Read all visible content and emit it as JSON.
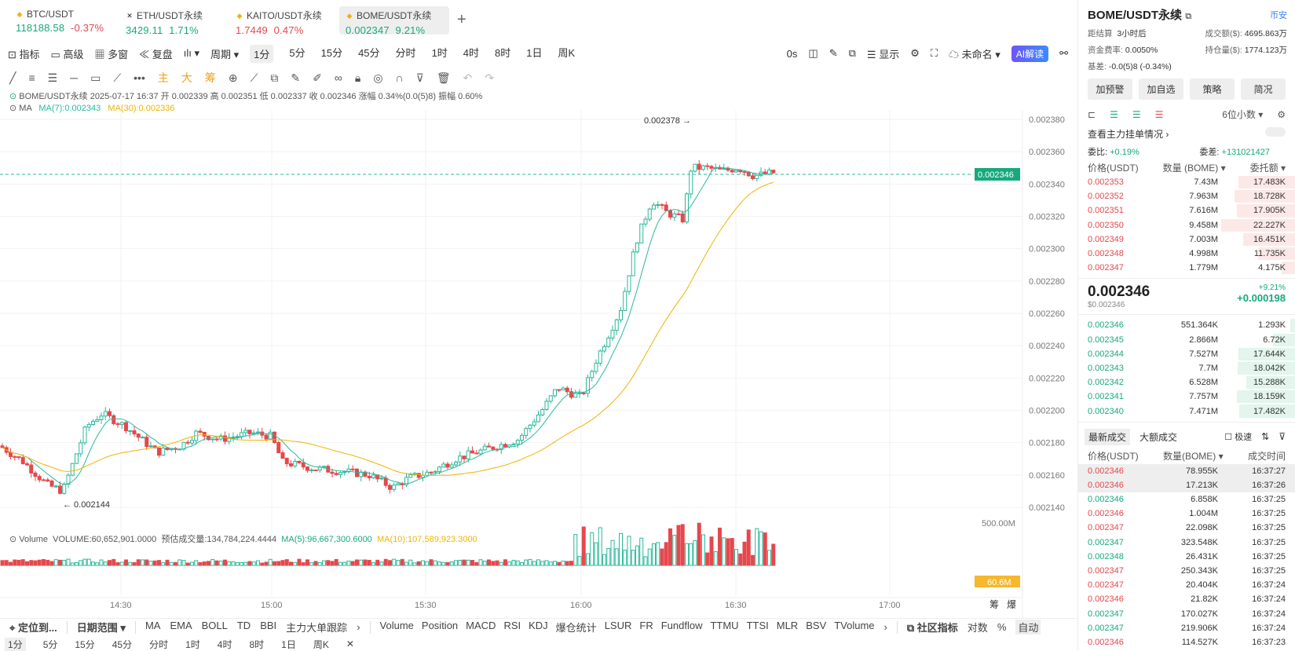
{
  "tabs": [
    {
      "name": "BTC/USDT",
      "price": "118188.58",
      "change": "-0.37%",
      "pc": "g",
      "cc": "r",
      "icon": "bitcoin-icon"
    },
    {
      "name": "ETH/USDT永续",
      "price": "3429.11",
      "change": "1.71%",
      "pc": "g",
      "cc": "g",
      "icon": "close-circle-icon"
    },
    {
      "name": "KAITO/USDT永续",
      "price": "1.7449",
      "change": "0.47%",
      "pc": "r",
      "cc": "r",
      "icon": "kaito-icon"
    },
    {
      "name": "BOME/USDT永续",
      "price": "0.002347",
      "change": "9.21%",
      "pc": "g",
      "cc": "g",
      "icon": "bome-icon"
    }
  ],
  "toolbar": {
    "indicators": "指标",
    "advanced": "高级",
    "multi": "多窗",
    "replay": "复盘",
    "period": "周期",
    "intervals": [
      "1分",
      "5分",
      "15分",
      "45分",
      "分时",
      "1时",
      "4时",
      "8时",
      "1日",
      "周K"
    ],
    "right_time": "0s",
    "display": "显示",
    "unnamed": "未命名",
    "ai": "AI解读"
  },
  "drawbar": {
    "main": "主",
    "big": "大",
    "chip": "筹"
  },
  "info": {
    "line1": "BOME/USDT永续  2025-07-17 16:37  开 0.002339  高 0.002351  低 0.002337  收 0.002346  涨幅 0.34%(0.0(5)8)  振幅 0.60%",
    "ma_label": "MA",
    "ma7": "MA(7):0.002343",
    "ma30": "MA(30):0.002336"
  },
  "volume_info": {
    "label": "Volume",
    "vol": "VOLUME:60,652,901.0000",
    "est": "预估成交量:134,784,224.4444",
    "ma5": "MA(5):96,667,300.6000",
    "ma10": "MA(10):107,589,923.3000"
  },
  "chart_data": {
    "type": "candlestick",
    "y_ticks": [
      "0.002380",
      "0.002360",
      "0.002340",
      "0.002320",
      "0.002300",
      "0.002280",
      "0.002260",
      "0.002240",
      "0.002220",
      "0.002200",
      "0.002180",
      "0.002160",
      "0.002140"
    ],
    "x_ticks": [
      "14:30",
      "15:00",
      "15:30",
      "16:00",
      "16:30",
      "17:00"
    ],
    "last_price": "0.002346",
    "high_label": "0.002378",
    "low_label": "0.002144",
    "vol_tick": "500.00M",
    "vol_last": "60.6M"
  },
  "bottom": {
    "locate": "定位到...",
    "range": "日期范围",
    "inds": [
      "MA",
      "EMA",
      "BOLL",
      "TD",
      "BBI",
      "主力大单跟踪"
    ],
    "sub": [
      "Volume",
      "Position",
      "MACD",
      "RSI",
      "KDJ",
      "爆仓统计",
      "LSUR",
      "FR",
      "Fundflow",
      "TTMU",
      "TTSI",
      "MLR",
      "BSV",
      "TVolume"
    ],
    "community": "社区指标",
    "log": "对数",
    "pct": "%",
    "auto": "自动",
    "chip": "筹",
    "burst": "爆",
    "periods": [
      "1分",
      "5分",
      "15分",
      "45分",
      "分时",
      "1时",
      "4时",
      "8时",
      "1日",
      "周K"
    ]
  },
  "side": {
    "symbol": "BOME/USDT永续",
    "exchange": "币安",
    "settle_l": "距结算",
    "settle": "3小时后",
    "vol_l": "成交额($):",
    "vol": "4695.863万",
    "fund_l": "资金费率:",
    "fund": "0.0050%",
    "oi_l": "持仓量($):",
    "oi": "1774.123万",
    "basis_l": "基差:",
    "basis": "-0.0(5)8 (-0.34%)",
    "buttons": [
      "加预警",
      "加自选",
      "策略",
      "简况"
    ],
    "decimals": "6位小数",
    "main_orders": "查看主力挂单情况",
    "ratio_l": "委比:",
    "ratio": "+0.19%",
    "diff_l": "委差:",
    "diff": "+131021427",
    "hdr": [
      "价格(USDT)",
      "数量 (BOME)",
      "委托额"
    ],
    "asks": [
      [
        "0.002353",
        "7.43M",
        "17.483K",
        0.65
      ],
      [
        "0.002352",
        "7.963M",
        "18.728K",
        0.7
      ],
      [
        "0.002351",
        "7.616M",
        "17.905K",
        0.67
      ],
      [
        "0.002350",
        "9.458M",
        "22.227K",
        0.85
      ],
      [
        "0.002349",
        "7.003M",
        "16.451K",
        0.6
      ],
      [
        "0.002348",
        "4.998M",
        "11.735K",
        0.43
      ],
      [
        "0.002347",
        "1.779M",
        "4.175K",
        0.15
      ]
    ],
    "last": "0.002346",
    "last_usd": "$0.002346",
    "chg_pct": "+9.21%",
    "chg": "+0.000198",
    "bids": [
      [
        "0.002346",
        "551.364K",
        "1.293K",
        0.05
      ],
      [
        "0.002345",
        "2.866M",
        "6.72K",
        0.25
      ],
      [
        "0.002344",
        "7.527M",
        "17.644K",
        0.65
      ],
      [
        "0.002343",
        "7.7M",
        "18.042K",
        0.66
      ],
      [
        "0.002342",
        "6.528M",
        "15.288K",
        0.56
      ],
      [
        "0.002341",
        "7.757M",
        "18.159K",
        0.67
      ],
      [
        "0.002340",
        "7.471M",
        "17.482K",
        0.64
      ]
    ],
    "trade_tabs": [
      "最新成交",
      "大额成交"
    ],
    "fast": "极速",
    "trade_hdr": [
      "价格(USDT)",
      "数量(BOME)",
      "成交时间"
    ],
    "trades": [
      [
        "0.002346",
        "78.955K",
        "16:37:27",
        "r",
        1
      ],
      [
        "0.002346",
        "17.213K",
        "16:37:26",
        "r",
        1
      ],
      [
        "0.002346",
        "6.858K",
        "16:37:25",
        "g",
        0
      ],
      [
        "0.002346",
        "1.004M",
        "16:37:25",
        "r",
        0
      ],
      [
        "0.002347",
        "22.098K",
        "16:37:25",
        "r",
        0
      ],
      [
        "0.002347",
        "323.548K",
        "16:37:25",
        "g",
        0
      ],
      [
        "0.002348",
        "26.431K",
        "16:37:25",
        "g",
        0
      ],
      [
        "0.002347",
        "250.343K",
        "16:37:25",
        "r",
        0
      ],
      [
        "0.002347",
        "20.404K",
        "16:37:24",
        "r",
        0
      ],
      [
        "0.002346",
        "21.82K",
        "16:37:24",
        "r",
        0
      ],
      [
        "0.002347",
        "170.027K",
        "16:37:24",
        "g",
        0
      ],
      [
        "0.002347",
        "219.906K",
        "16:37:24",
        "g",
        0
      ],
      [
        "0.002346",
        "114.527K",
        "16:37:23",
        "r",
        0
      ]
    ]
  }
}
